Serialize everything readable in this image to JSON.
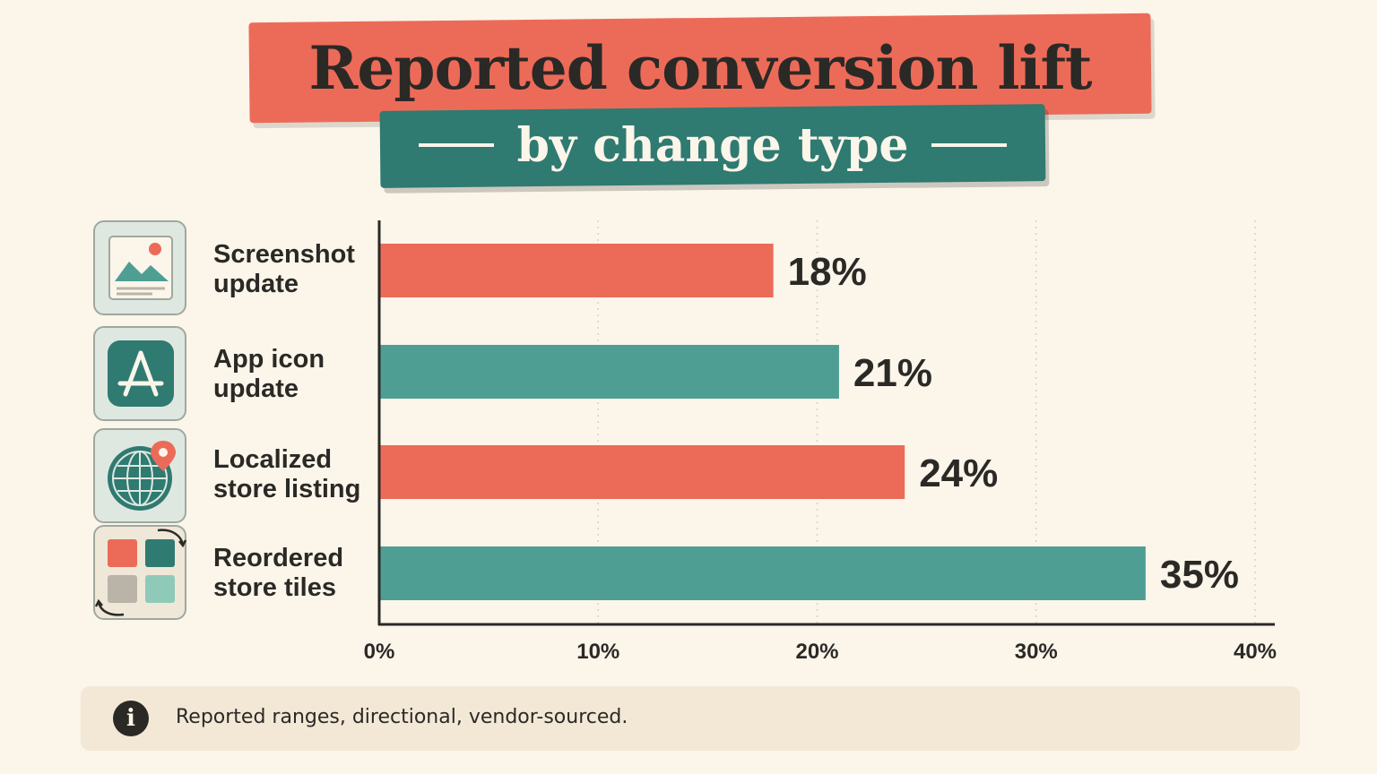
{
  "title": "Reported conversion lift",
  "subtitle": "by change type",
  "footnote": "Reported ranges, directional, vendor-sourced.",
  "footnote_icon": "info-icon",
  "colors": {
    "coral": "#ec6b58",
    "teal": "#4f9e94",
    "dark_teal": "#2f7a71",
    "text": "#2b2926",
    "background": "#fbf5ea"
  },
  "categories": [
    {
      "label_lines": [
        "Screenshot",
        "update"
      ],
      "icon": "screenshot-image-icon"
    },
    {
      "label_lines": [
        "App icon",
        "update"
      ],
      "icon": "app-store-icon"
    },
    {
      "label_lines": [
        "Localized",
        "store listing"
      ],
      "icon": "globe-location-icon"
    },
    {
      "label_lines": [
        "Reordered",
        "store tiles"
      ],
      "icon": "reorder-tiles-icon"
    }
  ],
  "chart_data": {
    "type": "bar",
    "orientation": "horizontal",
    "title": "Reported conversion lift",
    "subtitle": "by change type",
    "categories": [
      "Screenshot update",
      "App icon update",
      "Localized store listing",
      "Reordered store tiles"
    ],
    "values": [
      18,
      21,
      24,
      35
    ],
    "value_labels": [
      "18%",
      "21%",
      "24%",
      "35%"
    ],
    "bar_colors": [
      "#ec6b58",
      "#4f9e94",
      "#ec6b58",
      "#4f9e94"
    ],
    "xlim": [
      0,
      40
    ],
    "x_ticks": [
      0,
      10,
      20,
      30,
      40
    ],
    "x_tick_labels": [
      "0%",
      "10%",
      "20%",
      "30%",
      "40%"
    ],
    "grid": "vertical dotted",
    "legend": "none"
  }
}
